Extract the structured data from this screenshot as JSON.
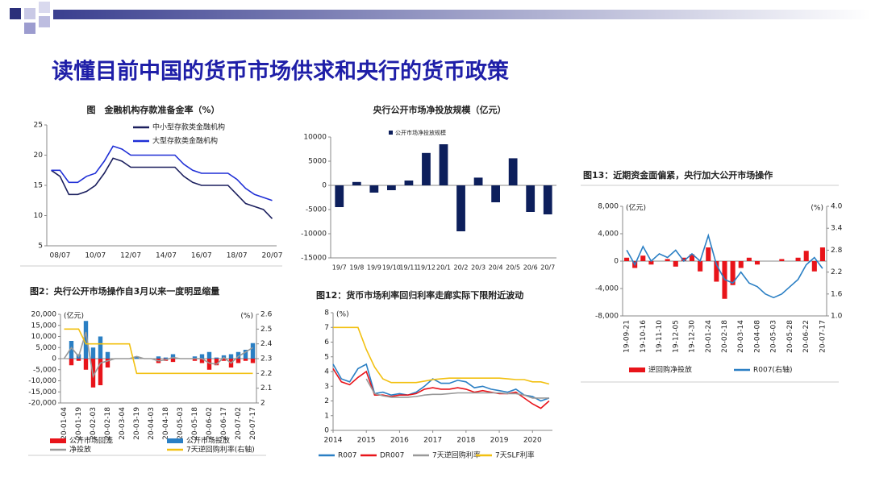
{
  "slide_title": "读懂目前中国的货币市场供求和央行的货币政策",
  "chart_data": [
    {
      "type": "line",
      "title": "图　金融机构存款准备金率（%）",
      "categories": [
        null,
        "08/07",
        null,
        null,
        null,
        "10/07",
        null,
        null,
        null,
        "12/07",
        null,
        null,
        null,
        "14/07",
        null,
        null,
        null,
        "16/07",
        null,
        null,
        null,
        "18/07",
        null,
        null,
        null,
        "20/07"
      ],
      "series": [
        {
          "name": "中小型存款类金融机构",
          "color": "#1b1f5e",
          "values": [
            17.5,
            16.5,
            13.5,
            13.5,
            14,
            15,
            17,
            19.5,
            19,
            18,
            18,
            18,
            18,
            18,
            18,
            16.5,
            15.5,
            15,
            15,
            15,
            15,
            13.5,
            12,
            11.5,
            11,
            9.5
          ]
        },
        {
          "name": "大型存款类金融机构",
          "color": "#1f2fd6",
          "values": [
            17.5,
            17.5,
            15.5,
            15.5,
            16.5,
            17,
            19,
            21.5,
            21,
            20,
            20,
            20,
            20,
            20,
            20,
            18.5,
            17.5,
            17,
            17,
            17,
            17,
            16,
            14.5,
            13.5,
            13,
            12.5
          ]
        }
      ],
      "ylim": [
        5,
        25
      ],
      "yticks": [
        5,
        10,
        15,
        20,
        25
      ]
    },
    {
      "type": "bar",
      "title": "央行公开市场净投放规模（亿元）",
      "categories": [
        "19/7",
        "19/8",
        "19/9",
        "19/10",
        "19/11",
        "19/12",
        "20/1",
        "20/2",
        "20/3",
        "20/4",
        "20/5",
        "20/6",
        "20/7"
      ],
      "series": [
        {
          "name": "公开市场净投放规模",
          "color": "#0d1f5c",
          "values": [
            -4500,
            700,
            -1500,
            -1000,
            1000,
            6700,
            8500,
            -9500,
            1600,
            -3500,
            5600,
            -5500,
            -6000
          ]
        }
      ],
      "ylim": [
        -15000,
        10000
      ],
      "yticks": [
        -15000,
        -10000,
        -5000,
        0,
        5000,
        10000
      ]
    },
    {
      "type": "combo",
      "title": "图13：近期资金面偏紧，央行加大公开市场操作",
      "ylabel": "(亿元)",
      "y2label": "(%)",
      "categories": [
        "19-09-21",
        null,
        "19-10-16",
        null,
        "19-11-10",
        null,
        "19-12-05",
        null,
        "19-12-30",
        null,
        "20-01-24",
        null,
        "20-02-18",
        null,
        "20-03-14",
        null,
        "20-04-08",
        null,
        "20-05-03",
        null,
        "20-05-28",
        null,
        "20-06-22",
        null,
        "20-07-17"
      ],
      "series": [
        {
          "name": "逆回购净投放",
          "kind": "bar",
          "color": "#e8141a",
          "values": [
            500,
            -1000,
            800,
            -500,
            0,
            300,
            -800,
            500,
            1000,
            -1500,
            2000,
            -3000,
            -5500,
            -3500,
            -1000,
            500,
            -500,
            0,
            0,
            300,
            0,
            500,
            1500,
            -1500,
            2000
          ]
        },
        {
          "name": "R007(右轴)",
          "kind": "line",
          "axis": "y2",
          "color": "#2a7fc4",
          "values": [
            2.8,
            2.4,
            2.9,
            2.5,
            2.7,
            2.6,
            2.8,
            2.5,
            2.7,
            2.5,
            3.2,
            2.4,
            2.0,
            1.9,
            2.2,
            1.9,
            1.8,
            1.6,
            1.5,
            1.6,
            1.8,
            2.0,
            2.4,
            2.6,
            2.3
          ]
        }
      ],
      "ylim": [
        -8000,
        8000
      ],
      "yticks": [
        {
          "value": -8000,
          "label": "-8,000"
        },
        {
          "value": -4000,
          "label": "-4,000"
        },
        0,
        {
          "value": 4000,
          "label": "4,000"
        },
        {
          "value": 8000,
          "label": "8,000"
        }
      ],
      "y2lim": [
        1.0,
        4.0
      ],
      "y2ticks": [
        {
          "value": 1.0,
          "label": "1.0"
        },
        1.6,
        2.2,
        2.8,
        3.4,
        {
          "value": 4.0,
          "label": "4.0"
        }
      ]
    },
    {
      "type": "combo",
      "title": "图2：央行公开市场操作自3月以来一度明显缩量",
      "ylabel": "(亿元)",
      "y2label": "(%)",
      "categories": [
        "20-01-04",
        null,
        "20-01-19",
        null,
        "20-02-03",
        null,
        "20-02-18",
        null,
        "20-03-04",
        null,
        "20-03-19",
        null,
        "20-04-03",
        null,
        "20-04-18",
        null,
        "20-05-03",
        null,
        "20-05-18",
        null,
        "20-06-02",
        null,
        "20-06-17",
        null,
        "20-07-02",
        null,
        "20-07-17"
      ],
      "series": [
        {
          "name": "公开市场回笼",
          "kind": "bar",
          "color": "#e8141a",
          "values": [
            0,
            -3000,
            -1000,
            -5000,
            -13000,
            -12000,
            -4000,
            0,
            0,
            0,
            0,
            0,
            0,
            -2000,
            -1000,
            -1500,
            0,
            0,
            -1000,
            -2000,
            -5000,
            -3000,
            -1000,
            -4000,
            -2000,
            -1000,
            -2000
          ]
        },
        {
          "name": "公开市场投放",
          "kind": "bar",
          "color": "#2a7fc4",
          "values": [
            0,
            8000,
            2000,
            17000,
            5000,
            10000,
            3000,
            0,
            0,
            0,
            1000,
            0,
            0,
            1000,
            500,
            2000,
            0,
            0,
            1000,
            2000,
            3000,
            500,
            1500,
            2000,
            3000,
            4000,
            7000
          ]
        },
        {
          "name": "净投放",
          "kind": "line",
          "color": "#999999",
          "values": [
            0,
            5000,
            1000,
            12000,
            -8000,
            -2000,
            -1000,
            0,
            0,
            0,
            1000,
            0,
            0,
            -1000,
            -500,
            500,
            0,
            0,
            0,
            0,
            -2000,
            -2500,
            500,
            -2000,
            1000,
            3000,
            5000
          ]
        },
        {
          "name": "7天逆回购利率(右轴)",
          "kind": "line",
          "axis": "y2",
          "color": "#f2c010",
          "values": [
            2.5,
            2.5,
            2.5,
            2.4,
            2.4,
            2.4,
            2.4,
            2.4,
            2.4,
            2.4,
            2.2,
            2.2,
            2.2,
            2.2,
            2.2,
            2.2,
            2.2,
            2.2,
            2.2,
            2.2,
            2.2,
            2.2,
            2.2,
            2.2,
            2.2,
            2.2,
            2.2
          ]
        }
      ],
      "ylim": [
        -20000,
        20000
      ],
      "yticks": [
        {
          "value": -20000,
          "label": "-20,000"
        },
        {
          "value": -15000,
          "label": "-15,000"
        },
        {
          "value": -10000,
          "label": "-10,000"
        },
        {
          "value": -5000,
          "label": "-5,000"
        },
        0,
        {
          "value": 5000,
          "label": "5,000"
        },
        {
          "value": 10000,
          "label": "10,000"
        },
        {
          "value": 15000,
          "label": "15,000"
        },
        {
          "value": 20000,
          "label": "20,000"
        }
      ],
      "y2lim": [
        2,
        2.6
      ],
      "y2ticks": [
        2,
        2.1,
        2.2,
        2.3,
        2.4,
        2.5,
        2.6
      ]
    },
    {
      "type": "line",
      "title": "图12：货币市场利率回归利率走廊实际下限附近波动",
      "ylabel": "(%)",
      "x": [
        2014,
        2014.25,
        2014.5,
        2014.75,
        2015,
        2015.25,
        2015.5,
        2015.75,
        2016,
        2016.25,
        2016.5,
        2016.75,
        2017,
        2017.25,
        2017.5,
        2017.75,
        2018,
        2018.25,
        2018.5,
        2018.75,
        2019,
        2019.25,
        2019.5,
        2019.75,
        2020,
        2020.25,
        2020.5
      ],
      "series": [
        {
          "name": "R007",
          "color": "#2a7fc4",
          "values": [
            4.5,
            3.5,
            3.3,
            4.2,
            4.5,
            2.5,
            2.6,
            2.4,
            2.5,
            2.4,
            2.6,
            3.0,
            3.5,
            3.2,
            3.2,
            3.4,
            3.3,
            2.9,
            3.0,
            2.8,
            2.7,
            2.6,
            2.8,
            2.4,
            2.3,
            2.0,
            2.2
          ]
        },
        {
          "name": "DR007",
          "color": "#e8141a",
          "values": [
            4.2,
            3.3,
            3.1,
            3.6,
            4.0,
            2.4,
            2.4,
            2.3,
            2.4,
            2.4,
            2.5,
            2.8,
            2.9,
            2.8,
            2.8,
            2.9,
            2.8,
            2.6,
            2.7,
            2.6,
            2.5,
            2.5,
            2.6,
            2.2,
            1.8,
            1.5,
            2.0
          ]
        },
        {
          "name": "7天逆回购利率",
          "color": "#999999",
          "values": [
            null,
            null,
            null,
            null,
            3.5,
            2.5,
            2.35,
            2.25,
            2.25,
            2.25,
            2.3,
            2.4,
            2.45,
            2.45,
            2.5,
            2.55,
            2.55,
            2.55,
            2.55,
            2.55,
            2.55,
            2.5,
            2.5,
            2.4,
            2.2,
            2.2,
            2.2
          ]
        },
        {
          "name": "7天SLF利率",
          "color": "#f2c010",
          "values": [
            7,
            7,
            7,
            7,
            5.5,
            4.3,
            3.5,
            3.25,
            3.25,
            3.25,
            3.25,
            3.35,
            3.45,
            3.5,
            3.55,
            3.55,
            3.55,
            3.55,
            3.55,
            3.55,
            3.55,
            3.5,
            3.45,
            3.45,
            3.3,
            3.3,
            3.15
          ]
        }
      ],
      "xlim": [
        2014,
        2020.6
      ],
      "xticks": [
        2014,
        2015,
        2016,
        2017,
        2018,
        2019,
        2020
      ],
      "ylim": [
        0,
        8
      ],
      "yticks": [
        0,
        1,
        2,
        3,
        4,
        5,
        6,
        7,
        8
      ]
    }
  ]
}
